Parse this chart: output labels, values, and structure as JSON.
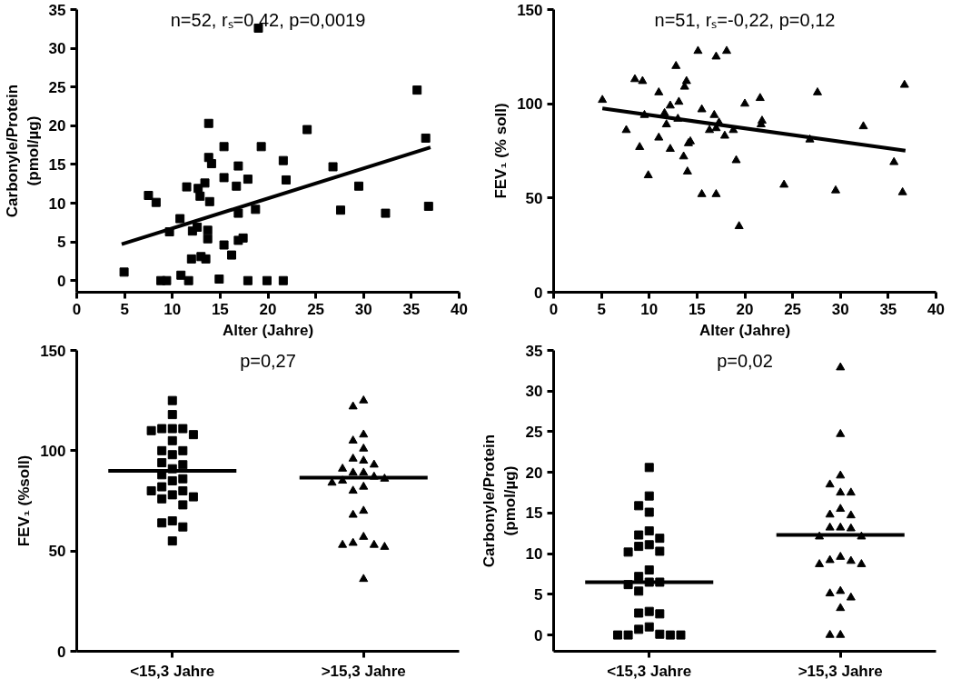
{
  "chart_data": [
    {
      "type": "scatter",
      "xlabel": "Alter (Jahre)",
      "ylabel": "Carbonyle/Protein\n(pmol/µg)",
      "xlim": [
        0,
        40
      ],
      "ylim": [
        -1.5,
        35
      ],
      "xticks": [
        0,
        5,
        10,
        15,
        20,
        25,
        30,
        35,
        40
      ],
      "yticks": [
        0,
        5,
        10,
        15,
        20,
        25,
        30,
        35
      ],
      "grid": false,
      "annotations": [
        "n=52, rₛ=0,42, p=0,0019"
      ],
      "series": [
        {
          "marker": "square",
          "color": "#000000",
          "x": [
            4.95,
            7.5,
            8.3,
            8.8,
            9.4,
            9.7,
            10.8,
            10.9,
            11.7,
            11.5,
            12.1,
            12.0,
            12.6,
            12.7,
            12.9,
            13.0,
            13.5,
            13.4,
            13.7,
            13.7,
            13.8,
            13.8,
            14.1,
            13.9,
            15.4,
            15.4,
            15.4,
            14.9,
            16.2,
            16.7,
            16.9,
            16.9,
            16.9,
            17.4,
            17.9,
            17.9,
            18.7,
            19.3,
            19.0,
            19.9,
            21.6,
            21.9,
            21.6,
            24.1,
            26.8,
            27.6,
            29.5,
            32.3,
            35.6,
            36.5,
            36.8
          ],
          "values": [
            1.1,
            11.0,
            10.1,
            0,
            0,
            6.3,
            8.0,
            0.7,
            0,
            12.1,
            6.4,
            2.8,
            6.9,
            11.9,
            10.9,
            3.1,
            2.8,
            12.6,
            6.5,
            5.4,
            20.3,
            15.9,
            15.1,
            10.2,
            17.3,
            13.3,
            4.6,
            0.2,
            3.3,
            12.2,
            14.8,
            8.7,
            5.2,
            5.5,
            13.1,
            0,
            9.2,
            17.3,
            32.6,
            0,
            15.5,
            13.0,
            0,
            19.5,
            14.7,
            9.1,
            12.2,
            8.7,
            24.6,
            18.4,
            9.6
          ]
        },
        {
          "type": "line",
          "color": "#000000",
          "x": [
            4.7,
            37.0
          ],
          "values": [
            4.7,
            17.2
          ]
        }
      ]
    },
    {
      "type": "scatter",
      "xlabel": "Alter (Jahre)",
      "ylabel": "FEV₁ (% soll)",
      "xlim": [
        0,
        40
      ],
      "ylim": [
        0,
        150
      ],
      "xticks": [
        0,
        5,
        10,
        15,
        20,
        25,
        30,
        35,
        40
      ],
      "yticks": [
        0,
        50,
        100,
        150
      ],
      "grid": false,
      "annotations": [
        "n=51, rₛ=-0,22, p=0,12"
      ],
      "series": [
        {
          "marker": "triangle",
          "color": "#000000",
          "x": [
            5.1,
            7.6,
            8.5,
            9.3,
            9.0,
            9.5,
            9.9,
            11.0,
            11.0,
            11.6,
            11.8,
            12.2,
            12.2,
            12.8,
            13.1,
            13.0,
            13.6,
            13.7,
            13.9,
            14.0,
            14.1,
            14.3,
            15.1,
            15.5,
            15.5,
            16.3,
            16.8,
            17.0,
            17.0,
            17.0,
            17.3,
            17.9,
            18.1,
            18.8,
            19.1,
            19.4,
            20.0,
            21.6,
            21.8,
            21.7,
            24.1,
            26.8,
            27.6,
            29.5,
            32.4,
            35.6,
            36.5,
            36.7
          ],
          "values": [
            102,
            86,
            113,
            112,
            77,
            94,
            62,
            106,
            82,
            95,
            89,
            99,
            76,
            120,
            101,
            92,
            72,
            109,
            112,
            64,
            79,
            80,
            128,
            97,
            52,
            86,
            94,
            125,
            87,
            52,
            90,
            83,
            128,
            86,
            70,
            35,
            100,
            103,
            91,
            89,
            57,
            81,
            106,
            54,
            88,
            69,
            53,
            110
          ]
        },
        {
          "type": "line",
          "color": "#000000",
          "x": [
            5.1,
            36.8
          ],
          "values": [
            97.5,
            75.1
          ]
        }
      ]
    },
    {
      "type": "scatter",
      "ylabel": "FEV₁ (%soll)",
      "categories": [
        "<15,3 Jahre",
        ">15,3 Jahre"
      ],
      "ylim": [
        0,
        150
      ],
      "yticks": [
        0,
        50,
        100,
        150
      ],
      "grid": false,
      "annotations": [
        "p=0,27"
      ],
      "series": [
        {
          "marker": "square",
          "color": "#000000",
          "x": [
            "<15,3 Jahre",
            "<15,3 Jahre",
            "<15,3 Jahre",
            "<15,3 Jahre",
            "<15,3 Jahre",
            "<15,3 Jahre",
            "<15,3 Jahre",
            "<15,3 Jahre",
            "<15,3 Jahre",
            "<15,3 Jahre",
            "<15,3 Jahre",
            "<15,3 Jahre",
            "<15,3 Jahre",
            "<15,3 Jahre",
            "<15,3 Jahre",
            "<15,3 Jahre",
            "<15,3 Jahre",
            "<15,3 Jahre",
            "<15,3 Jahre",
            "<15,3 Jahre",
            "<15,3 Jahre",
            "<15,3 Jahre",
            "<15,3 Jahre",
            "<15,3 Jahre",
            "<15,3 Jahre",
            "<15,3 Jahre",
            "<15,3 Jahre",
            "<15,3 Jahre"
          ],
          "values": [
            125,
            118,
            111,
            111,
            111,
            110,
            108,
            105,
            100,
            100,
            98,
            93,
            94,
            91,
            88,
            85,
            86,
            80,
            80,
            82,
            77,
            76,
            78,
            73,
            64,
            65,
            62,
            55
          ]
        },
        {
          "marker": "triangle",
          "color": "#000000",
          "x": [
            ">15,3 Jahre",
            ">15,3 Jahre",
            ">15,3 Jahre",
            ">15,3 Jahre",
            ">15,3 Jahre",
            ">15,3 Jahre",
            ">15,3 Jahre",
            ">15,3 Jahre",
            ">15,3 Jahre",
            ">15,3 Jahre",
            ">15,3 Jahre",
            ">15,3 Jahre",
            ">15,3 Jahre",
            ">15,3 Jahre",
            ">15,3 Jahre",
            ">15,3 Jahre",
            ">15,3 Jahre",
            ">15,3 Jahre",
            ">15,3 Jahre",
            ">15,3 Jahre",
            ">15,3 Jahre",
            ">15,3 Jahre",
            ">15,3 Jahre",
            ">15,3 Jahre",
            ">15,3 Jahre"
          ],
          "values": [
            125,
            122,
            108,
            105,
            101,
            96,
            95,
            93,
            91,
            89,
            89,
            87,
            85,
            86,
            84,
            82,
            80,
            68,
            70,
            54,
            53,
            52,
            53,
            57,
            36
          ]
        },
        {
          "type": "box",
          "color": "#000000",
          "boxes": [
            {
              "low": 90,
              "q1": 90,
              "median": 90,
              "q3": 90,
              "high": 90
            },
            {
              "low": 86.6,
              "q1": 86.6,
              "median": 86.6,
              "q3": 86.6,
              "high": 86.6
            }
          ]
        }
      ]
    },
    {
      "type": "scatter",
      "ylabel": "Carbonyle/Protein\n(pmol/µg)",
      "categories": [
        "<15,3 Jahre",
        ">15,3 Jahre"
      ],
      "ylim": [
        -2,
        35
      ],
      "yticks": [
        0,
        5,
        10,
        15,
        20,
        25,
        30,
        35
      ],
      "grid": false,
      "annotations": [
        "p=0,02"
      ],
      "series": [
        {
          "marker": "square",
          "color": "#000000",
          "x": [
            "<15,3 Jahre",
            "<15,3 Jahre",
            "<15,3 Jahre",
            "<15,3 Jahre",
            "<15,3 Jahre",
            "<15,3 Jahre",
            "<15,3 Jahre",
            "<15,3 Jahre",
            "<15,3 Jahre",
            "<15,3 Jahre",
            "<15,3 Jahre",
            "<15,3 Jahre",
            "<15,3 Jahre",
            "<15,3 Jahre",
            "<15,3 Jahre",
            "<15,3 Jahre",
            "<15,3 Jahre",
            "<15,3 Jahre",
            "<15,3 Jahre",
            "<15,3 Jahre",
            "<15,3 Jahre",
            "<15,3 Jahre",
            "<15,3 Jahre",
            "<15,3 Jahre",
            "<15,3 Jahre",
            "<15,3 Jahre",
            "<15,3 Jahre"
          ],
          "values": [
            20.6,
            17.1,
            15.9,
            15.1,
            12.3,
            11.9,
            12.8,
            10.9,
            11.1,
            10.2,
            10.3,
            8.0,
            7.2,
            6.5,
            6.2,
            6.5,
            5.4,
            2.7,
            2.6,
            2.9,
            1.0,
            0.1,
            0,
            0,
            0,
            0,
            0.7
          ]
        },
        {
          "marker": "triangle",
          "color": "#000000",
          "x": [
            ">15,3 Jahre",
            ">15,3 Jahre",
            ">15,3 Jahre",
            ">15,3 Jahre",
            ">15,3 Jahre",
            ">15,3 Jahre",
            ">15,3 Jahre",
            ">15,3 Jahre",
            ">15,3 Jahre",
            ">15,3 Jahre",
            ">15,3 Jahre",
            ">15,3 Jahre",
            ">15,3 Jahre",
            ">15,3 Jahre",
            ">15,3 Jahre",
            ">15,3 Jahre",
            ">15,3 Jahre",
            ">15,3 Jahre",
            ">15,3 Jahre",
            ">15,3 Jahre",
            ">15,3 Jahre",
            ">15,3 Jahre",
            ">15,3 Jahre",
            ">15,3 Jahre",
            ">15,3 Jahre"
          ],
          "values": [
            32.9,
            24.7,
            19.6,
            18.5,
            17.5,
            17.5,
            15.5,
            14.8,
            14.7,
            13.2,
            13.1,
            13.2,
            12.1,
            12.1,
            9.2,
            8.7,
            8.7,
            9.1,
            9.6,
            4.6,
            5.1,
            5.4,
            3.3,
            0,
            0
          ]
        },
        {
          "type": "box",
          "color": "#000000",
          "boxes": [
            {
              "low": 6.5,
              "q1": 6.5,
              "median": 6.5,
              "q3": 6.5,
              "high": 6.5
            },
            {
              "low": 12.3,
              "q1": 12.3,
              "median": 12.3,
              "q3": 12.3,
              "high": 12.3
            }
          ]
        }
      ]
    }
  ]
}
